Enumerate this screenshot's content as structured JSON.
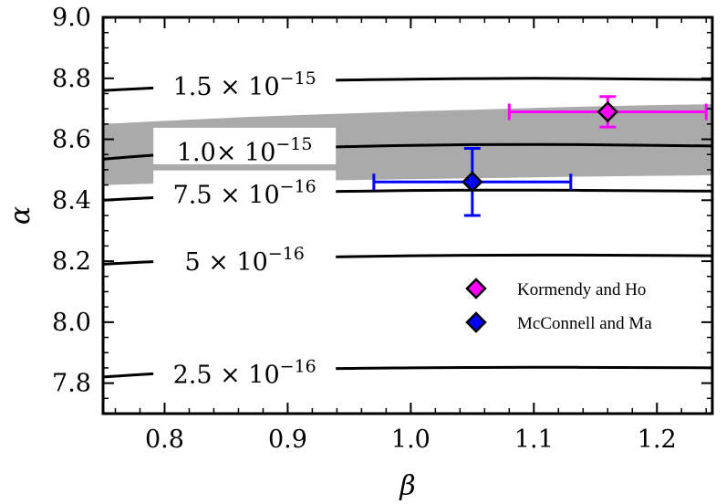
{
  "chart_data": {
    "type": "line",
    "xlabel": "β",
    "ylabel": "α",
    "xlim": [
      0.75,
      1.245
    ],
    "ylim": [
      7.7,
      9.0
    ],
    "xticks": [
      "0.8",
      "0.9",
      "1.0",
      "1.1",
      "1.2"
    ],
    "yticks": [
      "7.8",
      "8.0",
      "8.2",
      "8.4",
      "8.6",
      "8.8",
      "9.0"
    ],
    "grid": false,
    "legend_position": "lower-right",
    "contours": [
      {
        "label_mantissa": "1.5 × 10",
        "label_exponent": "−15",
        "label_x": 0.865,
        "label_y": 8.775,
        "x": [
          0.75,
          0.8,
          0.9,
          1.0,
          1.1,
          1.2,
          1.245
        ],
        "y": [
          8.76,
          8.77,
          8.79,
          8.797,
          8.8,
          8.797,
          8.796
        ]
      },
      {
        "label_mantissa": "1.0× 10",
        "label_exponent": "−15",
        "label_x": 0.865,
        "label_y": 8.56,
        "x": [
          0.75,
          0.8,
          0.9,
          1.0,
          1.1,
          1.2,
          1.245
        ],
        "y": [
          8.535,
          8.55,
          8.57,
          8.58,
          8.583,
          8.58,
          8.578
        ]
      },
      {
        "label_mantissa": "7.5 × 10",
        "label_exponent": "−16",
        "label_x": 0.865,
        "label_y": 8.42,
        "x": [
          0.75,
          0.8,
          0.9,
          1.0,
          1.1,
          1.2,
          1.245
        ],
        "y": [
          8.4,
          8.41,
          8.425,
          8.432,
          8.433,
          8.431,
          8.43
        ]
      },
      {
        "label_mantissa": "5 × 10",
        "label_exponent": "−16",
        "label_x": 0.865,
        "label_y": 8.2,
        "x": [
          0.75,
          0.8,
          0.9,
          1.0,
          1.1,
          1.2,
          1.245
        ],
        "y": [
          8.19,
          8.2,
          8.212,
          8.218,
          8.22,
          8.219,
          8.218
        ]
      },
      {
        "label_mantissa": "2.5 × 10",
        "label_exponent": "−16",
        "label_x": 0.865,
        "label_y": 7.83,
        "x": [
          0.75,
          0.8,
          0.9,
          1.0,
          1.1,
          1.2,
          1.245
        ],
        "y": [
          7.82,
          7.832,
          7.845,
          7.85,
          7.852,
          7.851,
          7.85
        ]
      }
    ],
    "band": {
      "x": [
        0.75,
        0.85,
        0.95,
        1.05,
        1.15,
        1.245
      ],
      "upper": [
        8.65,
        8.67,
        8.685,
        8.697,
        8.708,
        8.715
      ],
      "lower": [
        8.45,
        8.46,
        8.466,
        8.472,
        8.478,
        8.482
      ],
      "color": "#aaaaaa"
    },
    "series": [
      {
        "name": "Kormendy and Ho",
        "color": "#ff00ff",
        "x": 1.16,
        "y": 8.69,
        "xerr": [
          0.08,
          0.08
        ],
        "yerr": [
          0.05,
          0.05
        ]
      },
      {
        "name": "McConnell and Ma",
        "color": "#0000ff",
        "x": 1.05,
        "y": 8.46,
        "xerr": [
          0.08,
          0.08
        ],
        "yerr": [
          0.11,
          0.11
        ]
      }
    ]
  }
}
